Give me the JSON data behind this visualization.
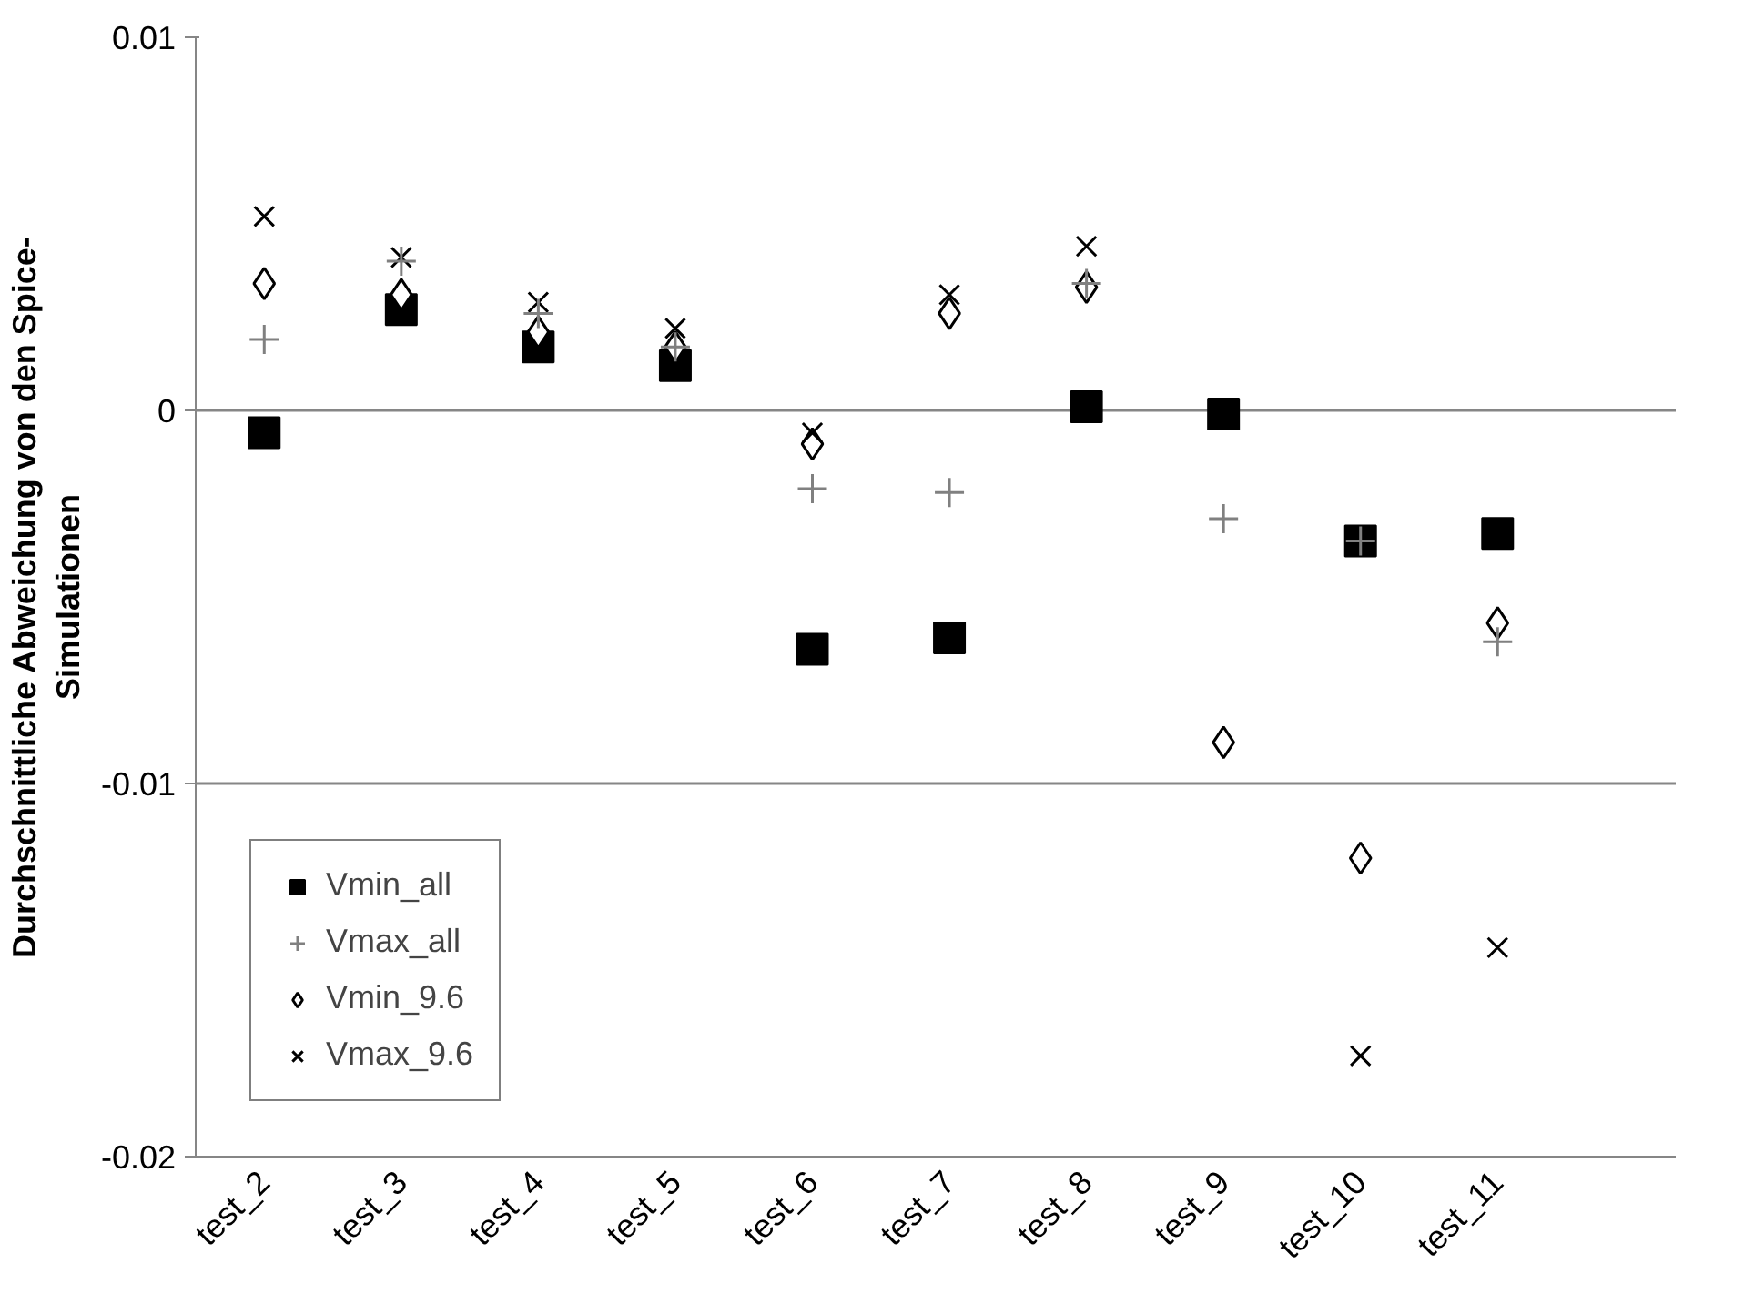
{
  "chart_data": {
    "type": "scatter",
    "ylabel": "Durchschnittliche Abweichung von den Spice-Simulationen",
    "categories": [
      "test_2",
      "test_3",
      "test_4",
      "test_5",
      "test_6",
      "test_7",
      "test_8",
      "test_9",
      "test_10",
      "test_11"
    ],
    "series": [
      {
        "name": "Vmin_all",
        "color": "#000000",
        "marker": "square",
        "values": [
          -0.0006,
          0.0027,
          0.0017,
          0.0012,
          -0.0064,
          -0.0061,
          0.0001,
          -0.0001,
          -0.0035,
          -0.0033
        ]
      },
      {
        "name": "Vmax_all",
        "color": "#808080",
        "marker": "cross",
        "values": [
          0.0019,
          0.004,
          0.0026,
          0.0017,
          -0.0021,
          -0.0022,
          0.0034,
          -0.0029,
          -0.0035,
          -0.0062
        ]
      },
      {
        "name": "Vmin_9.6",
        "color": "#000000",
        "marker": "diamond",
        "values": [
          0.0034,
          0.0031,
          0.0021,
          0.0017,
          -0.0009,
          0.0026,
          0.0033,
          -0.0089,
          -0.012,
          -0.0057
        ]
      },
      {
        "name": "Vmax_9.6",
        "color": "#000000",
        "marker": "x",
        "values": [
          0.0052,
          0.0041,
          0.0029,
          0.0022,
          -0.0006,
          0.0031,
          0.0044,
          null,
          -0.0173,
          -0.0144
        ]
      }
    ],
    "ylim": [
      -0.02,
      0.01
    ],
    "yticks": [
      {
        "value": -0.02,
        "label": "-0.02"
      },
      {
        "value": -0.01,
        "label": "-0.01"
      },
      0,
      {
        "value": 0.01,
        "label": "0.01"
      }
    ],
    "grid": "y",
    "legend": "bottom left"
  }
}
